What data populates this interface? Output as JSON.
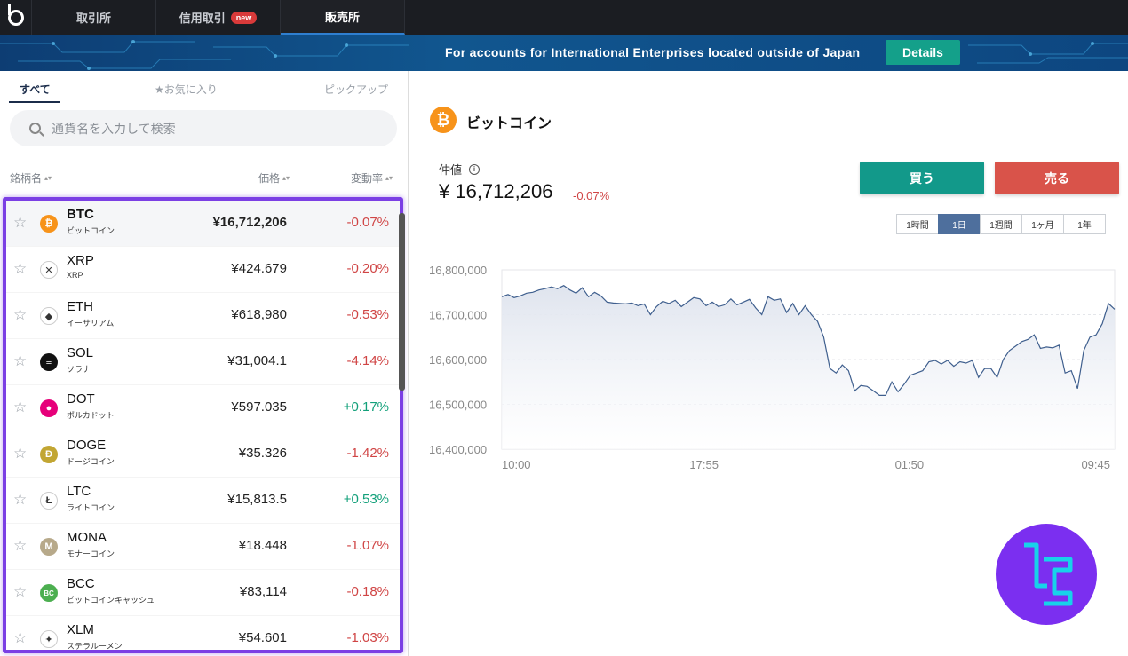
{
  "nav": {
    "tabs": [
      {
        "label": "取引所"
      },
      {
        "label": "信用取引",
        "badge": "new"
      },
      {
        "label": "販売所",
        "active": true
      }
    ]
  },
  "banner": {
    "text": "For accounts for International Enterprises located outside of Japan",
    "button": "Details"
  },
  "market_tabs": [
    "すべて",
    "★お気に入り",
    "ピックアップ"
  ],
  "search": {
    "placeholder": "通貨名を入力して検索"
  },
  "columns": {
    "name": "銘柄名",
    "price": "価格",
    "change": "変動率"
  },
  "coins": [
    {
      "symbol": "BTC",
      "name": "ビットコイン",
      "price": "¥16,712,206",
      "change": "-0.07%",
      "dir": "neg",
      "icon_color": "#f7931a",
      "icon": "₿"
    },
    {
      "symbol": "XRP",
      "name": "XRP",
      "price": "¥424.679",
      "change": "-0.20%",
      "dir": "neg",
      "icon_color": "#ffffff",
      "icon": "✕"
    },
    {
      "symbol": "ETH",
      "name": "イーサリアム",
      "price": "¥618,980",
      "change": "-0.53%",
      "dir": "neg",
      "icon_color": "#ffffff",
      "icon": "◆"
    },
    {
      "symbol": "SOL",
      "name": "ソラナ",
      "price": "¥31,004.1",
      "change": "-4.14%",
      "dir": "neg",
      "icon_color": "#111111",
      "icon": "≡"
    },
    {
      "symbol": "DOT",
      "name": "ポルカドット",
      "price": "¥597.035",
      "change": "+0.17%",
      "dir": "pos",
      "icon_color": "#e6007a",
      "icon": "●"
    },
    {
      "symbol": "DOGE",
      "name": "ドージコイン",
      "price": "¥35.326",
      "change": "-1.42%",
      "dir": "neg",
      "icon_color": "#c2a633",
      "icon": "Ð"
    },
    {
      "symbol": "LTC",
      "name": "ライトコイン",
      "price": "¥15,813.5",
      "change": "+0.53%",
      "dir": "pos",
      "icon_color": "#ffffff",
      "icon": "Ł"
    },
    {
      "symbol": "MONA",
      "name": "モナーコイン",
      "price": "¥18.448",
      "change": "-1.07%",
      "dir": "neg",
      "icon_color": "#b7a98a",
      "icon": "M"
    },
    {
      "symbol": "BCC",
      "name": "ビットコインキャッシュ",
      "price": "¥83,114",
      "change": "-0.18%",
      "dir": "neg",
      "icon_color": "#4caf50",
      "icon": "BC"
    },
    {
      "symbol": "XLM",
      "name": "ステラルーメン",
      "price": "¥54.601",
      "change": "-1.03%",
      "dir": "neg",
      "icon_color": "#ffffff",
      "icon": "✦"
    }
  ],
  "detail": {
    "coin_name": "ビットコイン",
    "mid_label": "仲値",
    "mid_price": "¥ 16,712,206",
    "mid_change": "-0.07%",
    "buy": "買う",
    "sell": "売る",
    "ranges": [
      "1時間",
      "1日",
      "1週間",
      "1ヶ月",
      "1年"
    ],
    "active_range": "1日"
  },
  "colors": {
    "accent_buy": "#12998a",
    "accent_sell": "#d9534a",
    "negative": "#d04545",
    "positive": "#12a07a",
    "highlight": "#7b3fe4"
  },
  "chart_data": {
    "type": "area",
    "ylim": [
      16400000,
      16800000
    ],
    "yticks": [
      "16,800,000",
      "16,700,000",
      "16,600,000",
      "16,500,000",
      "16,400,000"
    ],
    "xticks": [
      "10:00",
      "17:55",
      "01:50",
      "09:45"
    ],
    "grid": true,
    "x_count": 100,
    "values": [
      16740000,
      16745000,
      16738000,
      16742000,
      16748000,
      16750000,
      16755000,
      16758000,
      16762000,
      16758000,
      16765000,
      16755000,
      16748000,
      16760000,
      16740000,
      16750000,
      16742000,
      16728000,
      16726000,
      16725000,
      16724000,
      16726000,
      16720000,
      16724000,
      16700000,
      16718000,
      16730000,
      16725000,
      16732000,
      16718000,
      16728000,
      16738000,
      16735000,
      16720000,
      16728000,
      16718000,
      16722000,
      16735000,
      16722000,
      16728000,
      16734000,
      16715000,
      16700000,
      16740000,
      16732000,
      16735000,
      16705000,
      16725000,
      16700000,
      16720000,
      16700000,
      16685000,
      16650000,
      16580000,
      16570000,
      16588000,
      16575000,
      16530000,
      16542000,
      16540000,
      16530000,
      16520000,
      16520000,
      16550000,
      16528000,
      16545000,
      16565000,
      16570000,
      16575000,
      16595000,
      16598000,
      16590000,
      16598000,
      16585000,
      16595000,
      16592000,
      16598000,
      16560000,
      16580000,
      16580000,
      16560000,
      16600000,
      16620000,
      16630000,
      16640000,
      16645000,
      16655000,
      16625000,
      16628000,
      16626000,
      16632000,
      16570000,
      16575000,
      16535000,
      16620000,
      16650000,
      16655000,
      16680000,
      16725000,
      16712000
    ]
  }
}
